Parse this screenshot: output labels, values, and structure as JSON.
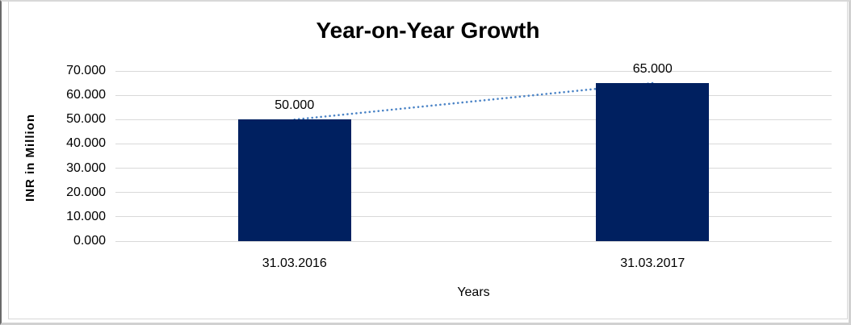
{
  "chart_data": {
    "type": "bar",
    "title": "Year-on-Year Growth",
    "xlabel": "Years",
    "ylabel": "INR in Million",
    "categories": [
      "31.03.2016",
      "31.03.2017"
    ],
    "values": [
      50,
      65
    ],
    "data_labels": [
      "50.000",
      "65.000"
    ],
    "y_ticks": [
      0,
      10,
      20,
      30,
      40,
      50,
      60,
      70
    ],
    "y_tick_labels": [
      "0.000",
      "10.000",
      "20.000",
      "30.000",
      "40.000",
      "50.000",
      "60.000",
      "70.000"
    ],
    "ylim": [
      0,
      70
    ],
    "grid": true,
    "legend": "none",
    "bar_color": "#002060",
    "gridline_color": "#d9d9d9",
    "text_color": "#000000",
    "trendline": {
      "style": "dotted",
      "color": "#4a83c6",
      "from_value": 50,
      "to_value": 65
    }
  }
}
